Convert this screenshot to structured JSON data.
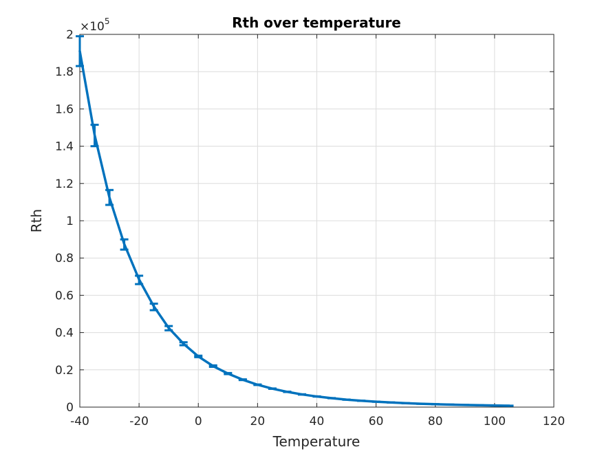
{
  "chart_data": {
    "type": "line",
    "title": "Rth over temperature",
    "xlabel": "Temperature",
    "ylabel": "Rth",
    "xlim": [
      -40,
      120
    ],
    "ylim": [
      0,
      200000
    ],
    "x_ticks": [
      -40,
      -20,
      0,
      20,
      40,
      60,
      80,
      100,
      120
    ],
    "y_ticks": [
      0,
      0.2,
      0.4,
      0.6,
      0.8,
      1,
      1.2,
      1.4,
      1.6,
      1.8,
      2
    ],
    "y_exponent_prefix": "×10",
    "y_exponent_power": "5",
    "grid": true,
    "line_color": "#0072BD",
    "grid_color": "#dcdcdc",
    "series": [
      {
        "x": [
          -40,
          -35,
          -30,
          -25,
          -20,
          -15,
          -10,
          -5,
          0,
          5,
          10,
          15,
          20,
          25,
          30,
          35,
          40,
          45,
          50,
          55,
          60,
          65,
          70,
          75,
          80,
          85,
          90,
          95,
          100,
          105
        ],
        "y": [
          191000,
          146000,
          112500,
          87500,
          68500,
          54000,
          42500,
          34000,
          27200,
          22000,
          18000,
          14700,
          12000,
          9900,
          8200,
          6800,
          5700,
          4800,
          4000,
          3400,
          2900,
          2500,
          2100,
          1800,
          1550,
          1350,
          1150,
          1000,
          870,
          760
        ],
        "err_low": [
          183000,
          140000,
          108500,
          84500,
          66000,
          52000,
          41200,
          33200,
          26800,
          21600,
          17700,
          14500,
          11850,
          9800,
          8100,
          6700,
          5630,
          4750,
          3950,
          3360,
          2860,
          2470,
          2080,
          1780,
          1530,
          1330,
          1130,
          980,
          850,
          740
        ],
        "err_high": [
          199000,
          151500,
          116500,
          90000,
          70500,
          55500,
          43500,
          34800,
          27600,
          22400,
          18300,
          14900,
          12150,
          10000,
          8300,
          6900,
          5770,
          4850,
          4050,
          3440,
          2940,
          2530,
          2120,
          1820,
          1570,
          1370,
          1170,
          1020,
          890,
          780
        ]
      }
    ]
  }
}
